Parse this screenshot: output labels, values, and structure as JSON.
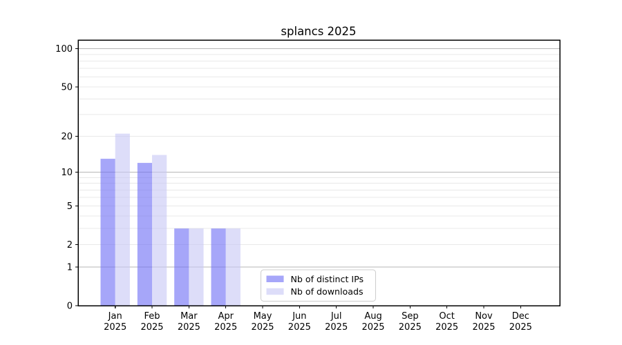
{
  "title": "splancs 2025",
  "chart_data": {
    "type": "bar",
    "title": "splancs 2025",
    "scale": "log1p",
    "categories": [
      "Jan 2025",
      "Feb 2025",
      "Mar 2025",
      "Apr 2025",
      "May 2025",
      "Jun 2025",
      "Jul 2025",
      "Aug 2025",
      "Sep 2025",
      "Oct 2025",
      "Nov 2025",
      "Dec 2025"
    ],
    "series": [
      {
        "name": "Nb of distinct IPs",
        "color": "#7070f5",
        "fill_opacity": 0.62,
        "values": [
          13,
          12,
          3,
          3,
          0,
          0,
          0,
          0,
          0,
          0,
          0,
          0
        ]
      },
      {
        "name": "Nb of downloads",
        "color": "#c8c8f5",
        "fill_opacity": 0.62,
        "values": [
          21,
          14,
          3,
          3,
          0,
          0,
          0,
          0,
          0,
          0,
          0,
          0
        ]
      }
    ],
    "y_ticks": [
      0,
      1,
      2,
      5,
      10,
      20,
      50,
      100
    ],
    "y_major_gridlines": [
      1,
      10,
      100
    ],
    "y_minor_gridlines": [
      2,
      3,
      4,
      5,
      6,
      7,
      8,
      9,
      20,
      30,
      40,
      50,
      60,
      70,
      80,
      90
    ],
    "ylim": [
      0,
      117
    ],
    "grid": "both",
    "legend_position": "lower center"
  },
  "colors": {
    "background": "#ffffff",
    "axis": "#000000",
    "grid_major": "#b6b6b6",
    "grid_minor": "#e8e8e8",
    "legend_border": "#cccccc",
    "legend_background": "#ffffff",
    "text": "#000000"
  }
}
